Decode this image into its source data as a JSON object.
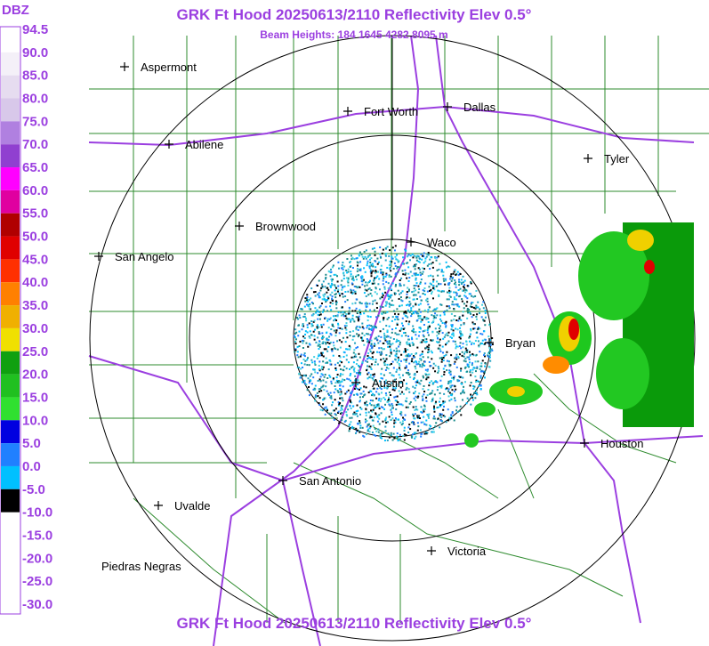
{
  "header": {
    "title": "GRK Ft Hood 20250613/2110 Reflectivity Elev 0.5°",
    "subtitle": "Beam Heights: 184 1645 4282 8095 m",
    "footer_title": "GRK Ft Hood 20250613/2110 Reflectivity Elev 0.5°"
  },
  "scale": {
    "unit": "DBZ",
    "labels": [
      "94.5",
      "90.0",
      "85.0",
      "80.0",
      "75.0",
      "70.0",
      "65.0",
      "60.0",
      "55.0",
      "50.0",
      "45.0",
      "40.0",
      "35.0",
      "30.0",
      "25.0",
      "20.0",
      "15.0",
      "10.0",
      "5.0",
      "0.0",
      "-5.0",
      "-10.0",
      "-15.0",
      "-20.0",
      "-25.0",
      "-30.0"
    ]
  },
  "cities": [
    {
      "name": "Aspermont"
    },
    {
      "name": "Fort Worth"
    },
    {
      "name": "Dallas"
    },
    {
      "name": "Abilene"
    },
    {
      "name": "Tyler"
    },
    {
      "name": "Brownwood"
    },
    {
      "name": "Waco"
    },
    {
      "name": "San Angelo"
    },
    {
      "name": "Bryan"
    },
    {
      "name": "Austin"
    },
    {
      "name": "Houston"
    },
    {
      "name": "San Antonio"
    },
    {
      "name": "Uvalde"
    },
    {
      "name": "Victoria"
    },
    {
      "name": "Piedras Negras"
    }
  ]
}
